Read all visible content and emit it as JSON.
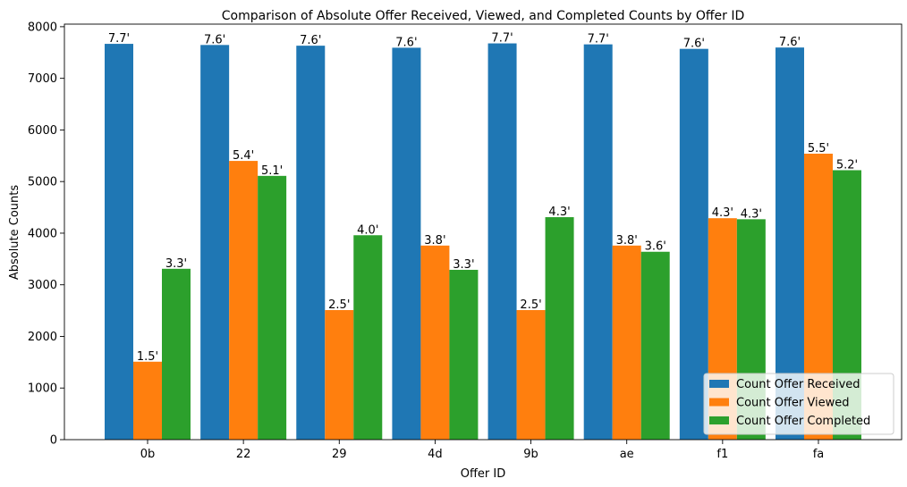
{
  "chart_data": {
    "type": "bar",
    "title": "Comparison of Absolute Offer Received, Viewed, and Completed Counts by Offer ID",
    "xlabel": "Offer ID",
    "ylabel": "Absolute Counts",
    "categories": [
      "0b",
      "22",
      "29",
      "4d",
      "9b",
      "ae",
      "f1",
      "fa"
    ],
    "ylim": [
      0,
      8050
    ],
    "yticks": [
      0,
      1000,
      2000,
      3000,
      4000,
      5000,
      6000,
      7000,
      8000
    ],
    "grid": false,
    "legend_position": "lower-right",
    "series": [
      {
        "name": "Count Offer Received",
        "color": "#1f77b4",
        "values": [
          7668,
          7646,
          7632,
          7593,
          7677,
          7658,
          7571,
          7597
        ],
        "labels": [
          "7.7'",
          "7.6'",
          "7.6'",
          "7.6'",
          "7.7'",
          "7.7'",
          "7.6'",
          "7.6'"
        ]
      },
      {
        "name": "Count Offer Viewed",
        "color": "#ff7f0e",
        "values": [
          1510,
          5400,
          2510,
          3760,
          2510,
          3760,
          4290,
          5540
        ],
        "labels": [
          "1.5'",
          "5.4'",
          "2.5'",
          "3.8'",
          "2.5'",
          "3.8'",
          "4.3'",
          "5.5'"
        ]
      },
      {
        "name": "Count Offer Completed",
        "color": "#2ca02c",
        "values": [
          3310,
          5110,
          3960,
          3290,
          4310,
          3640,
          4270,
          5220
        ],
        "labels": [
          "3.3'",
          "5.1'",
          "4.0'",
          "3.3'",
          "4.3'",
          "3.6'",
          "4.3'",
          "5.2'"
        ]
      }
    ]
  }
}
